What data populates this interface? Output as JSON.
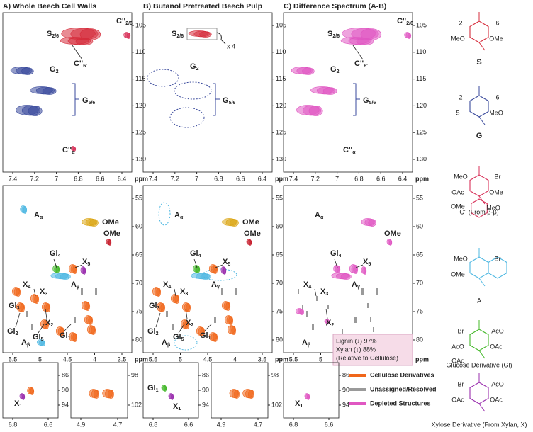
{
  "panels": [
    {
      "title": "A) Whole Beech Cell Walls"
    },
    {
      "title": "B) Butanol Pretreated Beech Pulp"
    },
    {
      "title": "C) Difference Spectrum (A-B)"
    }
  ],
  "axes": {
    "unit": "ppm",
    "aromatic_x": [
      7.4,
      7.2,
      7.0,
      6.8,
      6.6,
      6.4
    ],
    "aromatic_y": [
      105,
      110,
      115,
      120,
      125,
      130
    ],
    "aliphatic_x": [
      5.5,
      5.0,
      4.5,
      4.0,
      3.5
    ],
    "aliphatic_y": [
      55,
      60,
      65,
      70,
      75,
      80
    ],
    "anomeric1_x": [
      6.8,
      6.6
    ],
    "anomeric1_y": [
      86,
      90,
      94
    ],
    "anomeric2_x": [
      4.9,
      4.7
    ],
    "anomeric2_y": [
      98,
      102
    ]
  },
  "labels": {
    "S26": {
      "main": "S",
      "sub": "2/6"
    },
    "C26": {
      "main": "C''",
      "sub": "2/6"
    },
    "C6": {
      "main": "C''",
      "sub": "6'"
    },
    "G2": {
      "main": "G",
      "sub": "2"
    },
    "G56": {
      "main": "G",
      "sub": "5/6"
    },
    "Ca": {
      "main": "C''",
      "sub": "α"
    },
    "Aa": {
      "main": "A",
      "sub": "α"
    },
    "Ab": {
      "main": "A",
      "sub": "β"
    },
    "Ag": {
      "main": "A",
      "sub": "γ"
    },
    "OMe": "OMe",
    "Gl4": {
      "main": "Gl",
      "sub": "4"
    },
    "X5": {
      "main": "X",
      "sub": "5"
    },
    "X4": {
      "main": "X",
      "sub": "4"
    },
    "X3": {
      "main": "X",
      "sub": "3"
    },
    "X2": {
      "main": "X",
      "sub": "2"
    },
    "Gl3": {
      "main": "Gl",
      "sub": "3"
    },
    "Gl2": {
      "main": "Gl",
      "sub": "2"
    },
    "Gl5": {
      "main": "Gl",
      "sub": "5"
    },
    "Gl1": {
      "main": "Gl",
      "sub": "1"
    },
    "X1": {
      "main": "X",
      "sub": "1"
    }
  },
  "magnification": "x 4",
  "summary": [
    "Lignin (↓) 97%",
    "Xylan (↓) 88%",
    "(Relative to Cellulose)"
  ],
  "legend": [
    "Cellulose Derivatives",
    "Unassigned/Resolved",
    "Depleted Structures"
  ],
  "structures": [
    {
      "name": "S",
      "atoms": [
        "2",
        "6",
        "MeO",
        "OMe"
      ]
    },
    {
      "name": "G",
      "atoms": [
        "2",
        "6",
        "5",
        "MeO"
      ]
    },
    {
      "name": "C'' (From β-β)",
      "atoms": [
        "MeO",
        "Br",
        "OAc",
        "OMe",
        "OMe",
        "MeO"
      ]
    },
    {
      "name": "A",
      "atoms": [
        "MeO",
        "Br",
        "OMe"
      ]
    },
    {
      "name": "Glucose Derivative (Gl)",
      "atoms": [
        "Br",
        "AcO",
        "AcO",
        "OAc",
        "OAc"
      ]
    },
    {
      "name": "Xylose Derivative (From Xylan, X)",
      "atoms": [
        "Br",
        "AcO",
        "OAc",
        "OAc"
      ]
    }
  ]
}
